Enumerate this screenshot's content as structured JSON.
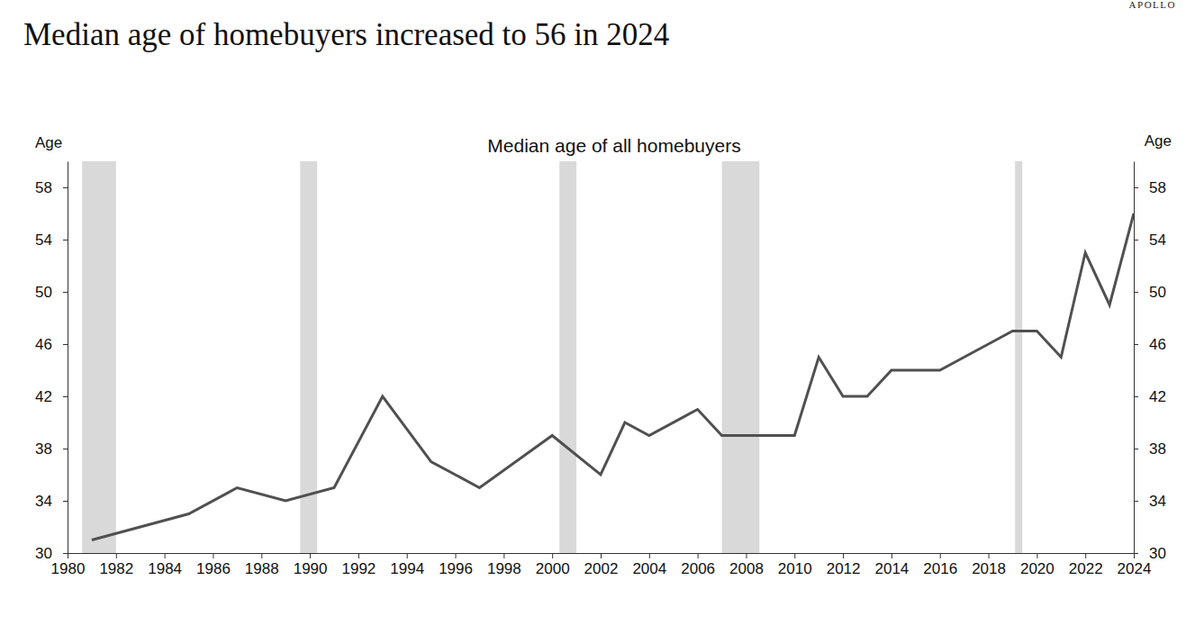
{
  "chart_data": {
    "type": "line",
    "title": "Median age of homebuyers increased to 56 in 2024",
    "subtitle": "Median age of all homebuyers",
    "source": "APOLLO",
    "y_label": "Age",
    "y2_label": "Age",
    "x": [
      1981,
      1985,
      1987,
      1989,
      1991,
      1993,
      1995,
      1997,
      2000,
      2002,
      2003,
      2004,
      2006,
      2007,
      2008,
      2009,
      2010,
      2011,
      2012,
      2013,
      2014,
      2015,
      2016,
      2017,
      2018,
      2019,
      2020,
      2021,
      2022,
      2023,
      2024
    ],
    "values": [
      31,
      33,
      35,
      34,
      35,
      42,
      37,
      35,
      39,
      36,
      40,
      39,
      41,
      39,
      39,
      39,
      39,
      45,
      42,
      42,
      44,
      44,
      44,
      45,
      46,
      47,
      47,
      45,
      53,
      49,
      56
    ],
    "color": "#505050",
    "xlim": [
      1980,
      2024
    ],
    "xticks": [
      1980,
      1982,
      1984,
      1986,
      1988,
      1990,
      1992,
      1994,
      1996,
      1998,
      2000,
      2002,
      2004,
      2006,
      2008,
      2010,
      2012,
      2014,
      2016,
      2018,
      2020,
      2022,
      2024
    ],
    "ylim": [
      30,
      60
    ],
    "yticks": [
      30,
      34,
      38,
      42,
      46,
      50,
      54,
      58
    ],
    "y2lim": [
      30,
      60
    ],
    "y2ticks": [
      30,
      34,
      38,
      42,
      46,
      50,
      54,
      58
    ],
    "shaded_periods": [
      {
        "start": 1980.6,
        "end": 1982.0
      },
      {
        "start": 1989.6,
        "end": 1990.3
      },
      {
        "start": 2000.3,
        "end": 2001.0
      },
      {
        "start": 2007.0,
        "end": 2008.55
      },
      {
        "start": 2019.1,
        "end": 2019.4
      }
    ],
    "grid": false
  }
}
